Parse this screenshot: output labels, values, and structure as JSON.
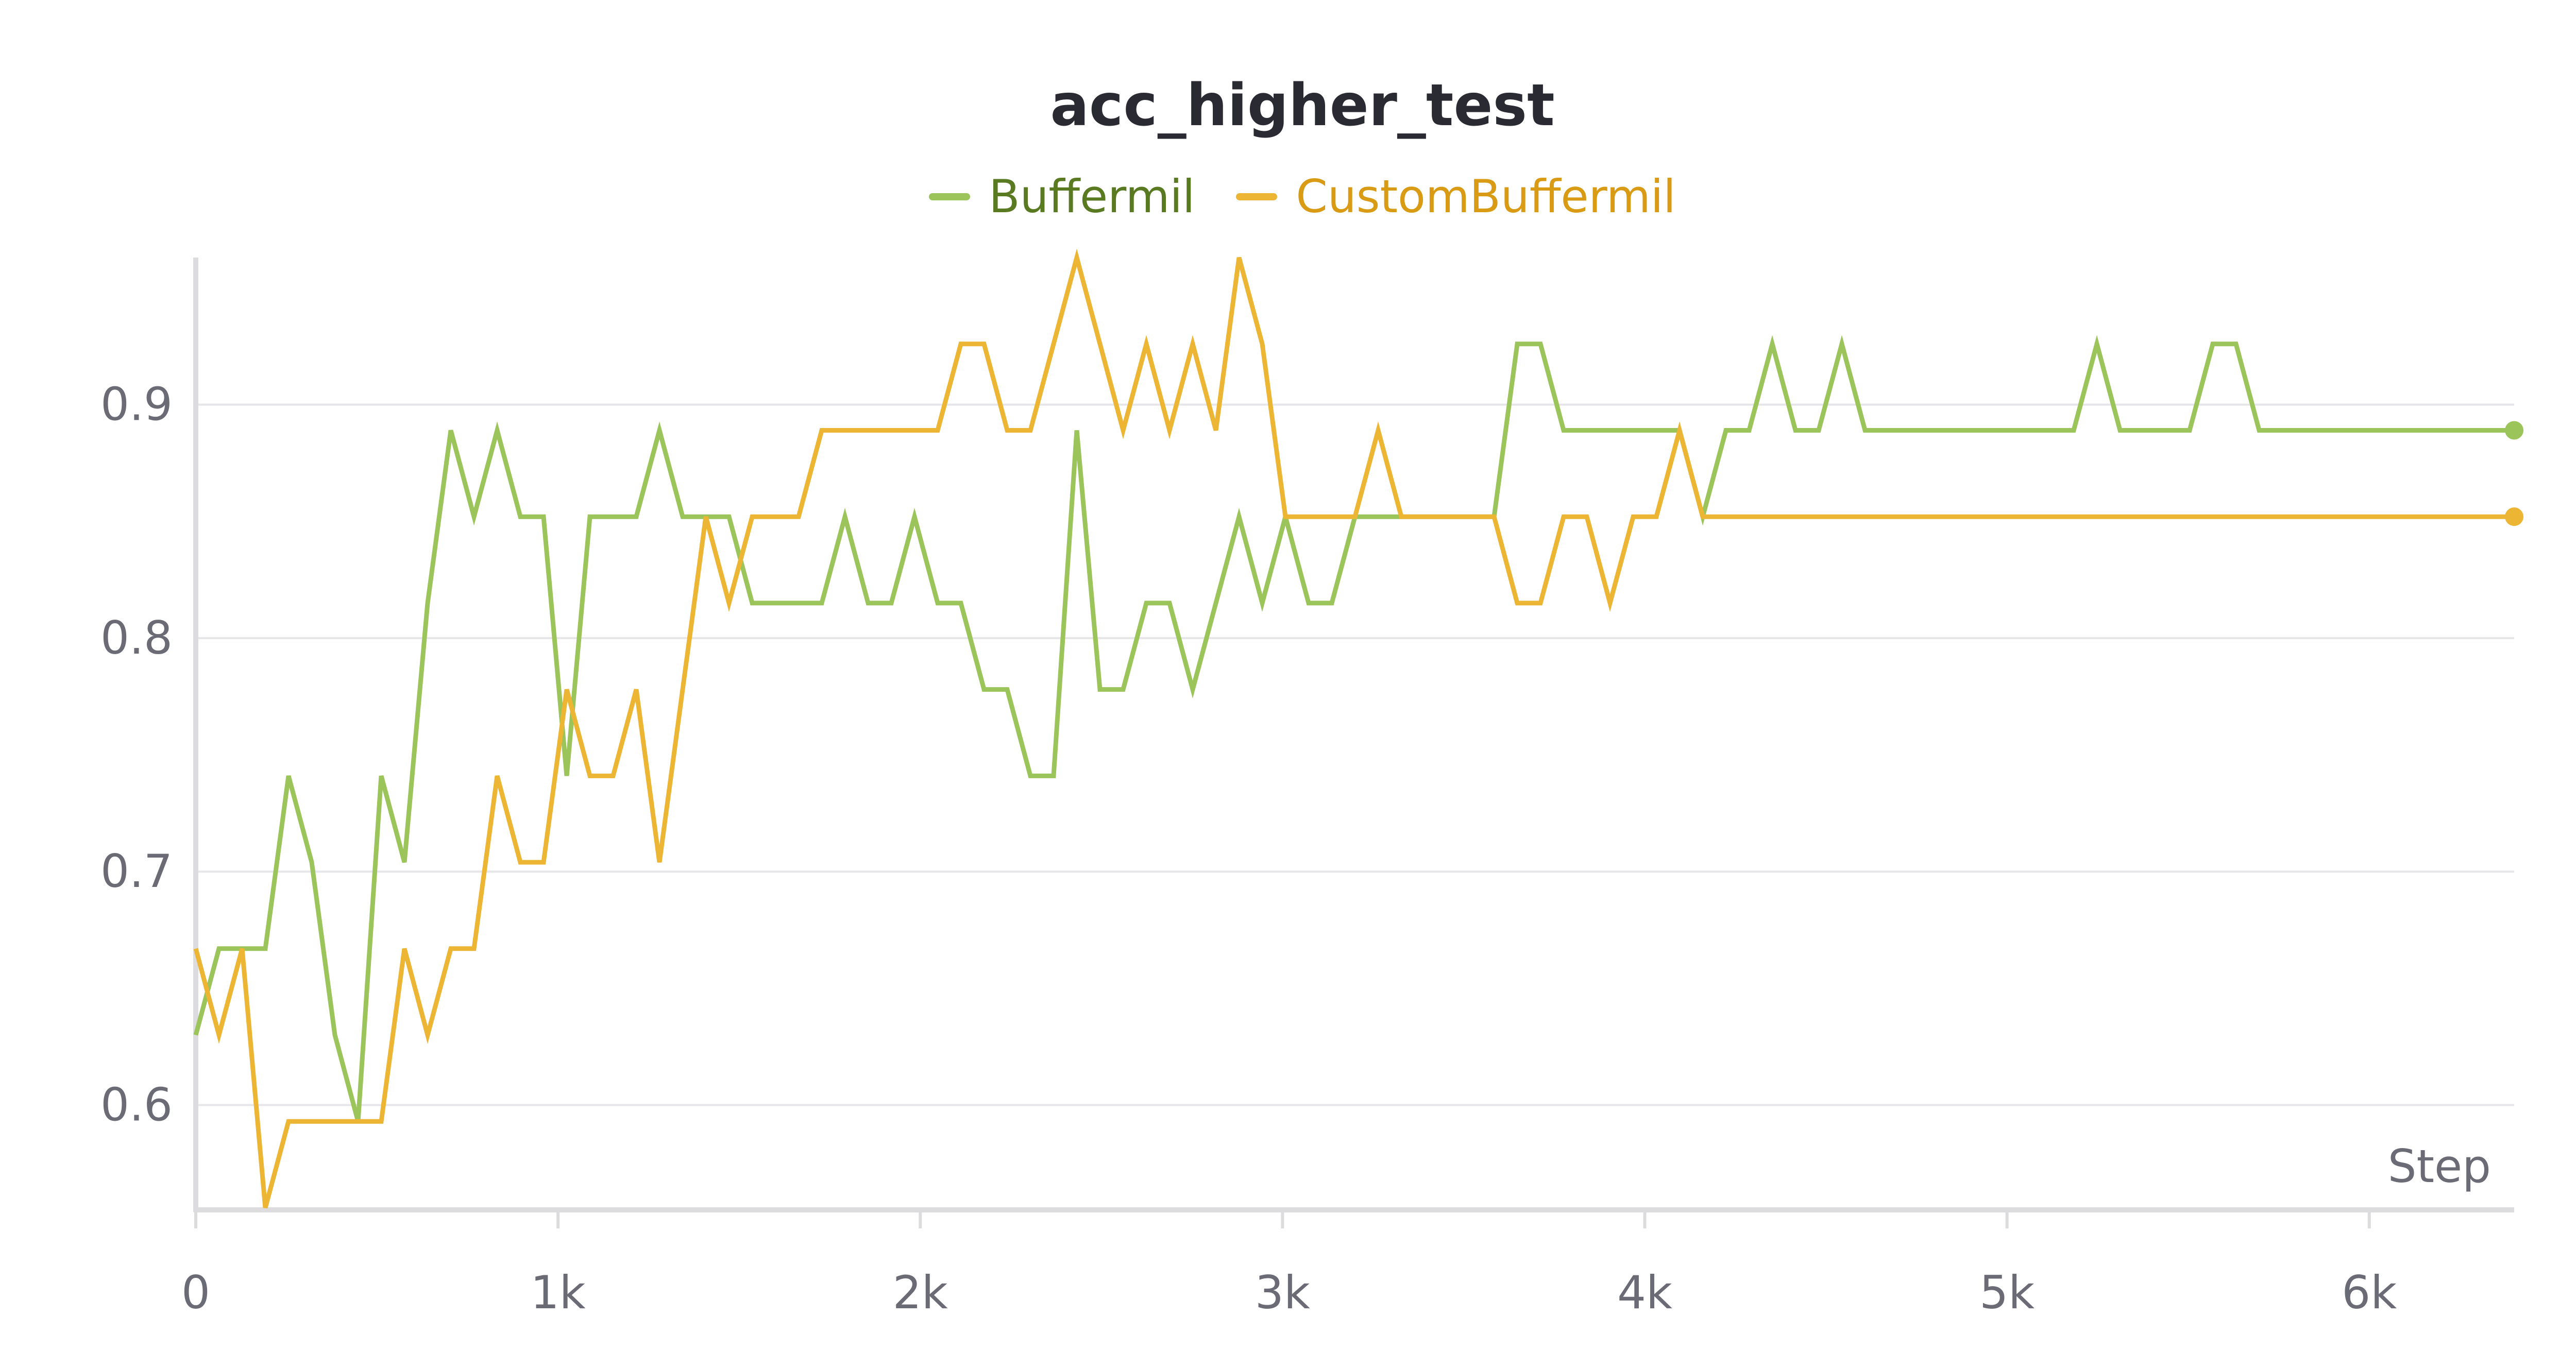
{
  "chart_data": {
    "type": "line",
    "title": "acc_higher_test",
    "xlabel": "Step",
    "ylabel": "",
    "xlim": [
      0,
      6400
    ],
    "ylim": [
      0.556,
      0.963
    ],
    "x_ticks": [
      0,
      1000,
      2000,
      3000,
      4000,
      5000,
      6000
    ],
    "x_tick_labels": [
      "0",
      "1k",
      "2k",
      "3k",
      "4k",
      "5k",
      "6k"
    ],
    "y_ticks": [
      0.6,
      0.7,
      0.8,
      0.9
    ],
    "y_tick_labels": [
      "0.6",
      "0.7",
      "0.8",
      "0.9"
    ],
    "grid": true,
    "legend": "top-center",
    "series": [
      {
        "name": "Buffermil",
        "color": "#9bc45a",
        "legend_text_color": "#5a7a22",
        "points": [
          [
            0,
            0.63
          ],
          [
            64,
            0.667
          ],
          [
            128,
            0.667
          ],
          [
            192,
            0.667
          ],
          [
            256,
            0.741
          ],
          [
            320,
            0.704
          ],
          [
            384,
            0.63
          ],
          [
            448,
            0.593
          ],
          [
            512,
            0.741
          ],
          [
            576,
            0.704
          ],
          [
            640,
            0.815
          ],
          [
            704,
            0.889
          ],
          [
            768,
            0.852
          ],
          [
            832,
            0.889
          ],
          [
            896,
            0.852
          ],
          [
            960,
            0.852
          ],
          [
            1024,
            0.741
          ],
          [
            1088,
            0.852
          ],
          [
            1152,
            0.852
          ],
          [
            1216,
            0.852
          ],
          [
            1280,
            0.889
          ],
          [
            1344,
            0.852
          ],
          [
            1408,
            0.852
          ],
          [
            1472,
            0.852
          ],
          [
            1536,
            0.815
          ],
          [
            1600,
            0.815
          ],
          [
            1664,
            0.815
          ],
          [
            1728,
            0.815
          ],
          [
            1792,
            0.852
          ],
          [
            1856,
            0.815
          ],
          [
            1920,
            0.815
          ],
          [
            1984,
            0.852
          ],
          [
            2048,
            0.815
          ],
          [
            2112,
            0.815
          ],
          [
            2176,
            0.778
          ],
          [
            2240,
            0.778
          ],
          [
            2304,
            0.741
          ],
          [
            2368,
            0.741
          ],
          [
            2432,
            0.889
          ],
          [
            2496,
            0.778
          ],
          [
            2560,
            0.778
          ],
          [
            2624,
            0.815
          ],
          [
            2688,
            0.815
          ],
          [
            2752,
            0.778
          ],
          [
            2816,
            0.815
          ],
          [
            2880,
            0.852
          ],
          [
            2944,
            0.815
          ],
          [
            3008,
            0.852
          ],
          [
            3072,
            0.815
          ],
          [
            3136,
            0.815
          ],
          [
            3200,
            0.852
          ],
          [
            3264,
            0.852
          ],
          [
            3328,
            0.852
          ],
          [
            3392,
            0.852
          ],
          [
            3456,
            0.852
          ],
          [
            3520,
            0.852
          ],
          [
            3584,
            0.852
          ],
          [
            3648,
            0.926
          ],
          [
            3712,
            0.926
          ],
          [
            3776,
            0.889
          ],
          [
            3840,
            0.889
          ],
          [
            3904,
            0.889
          ],
          [
            3968,
            0.889
          ],
          [
            4032,
            0.889
          ],
          [
            4096,
            0.889
          ],
          [
            4160,
            0.852
          ],
          [
            4224,
            0.889
          ],
          [
            4288,
            0.889
          ],
          [
            4352,
            0.926
          ],
          [
            4416,
            0.889
          ],
          [
            4480,
            0.889
          ],
          [
            4544,
            0.926
          ],
          [
            4608,
            0.889
          ],
          [
            4672,
            0.889
          ],
          [
            4736,
            0.889
          ],
          [
            4800,
            0.889
          ],
          [
            4864,
            0.889
          ],
          [
            4928,
            0.889
          ],
          [
            4992,
            0.889
          ],
          [
            5056,
            0.889
          ],
          [
            5120,
            0.889
          ],
          [
            5184,
            0.889
          ],
          [
            5248,
            0.926
          ],
          [
            5312,
            0.889
          ],
          [
            5376,
            0.889
          ],
          [
            5440,
            0.889
          ],
          [
            5504,
            0.889
          ],
          [
            5568,
            0.926
          ],
          [
            5632,
            0.926
          ],
          [
            5696,
            0.889
          ],
          [
            5760,
            0.889
          ],
          [
            6400,
            0.889
          ]
        ]
      },
      {
        "name": "CustomBuffermil",
        "color": "#ecb634",
        "legend_text_color": "#d99a14",
        "points": [
          [
            0,
            0.667
          ],
          [
            64,
            0.63
          ],
          [
            128,
            0.667
          ],
          [
            192,
            0.556
          ],
          [
            256,
            0.593
          ],
          [
            320,
            0.593
          ],
          [
            384,
            0.593
          ],
          [
            448,
            0.593
          ],
          [
            512,
            0.593
          ],
          [
            576,
            0.667
          ],
          [
            640,
            0.63
          ],
          [
            704,
            0.667
          ],
          [
            768,
            0.667
          ],
          [
            832,
            0.741
          ],
          [
            896,
            0.704
          ],
          [
            960,
            0.704
          ],
          [
            1024,
            0.778
          ],
          [
            1088,
            0.741
          ],
          [
            1152,
            0.741
          ],
          [
            1216,
            0.778
          ],
          [
            1280,
            0.704
          ],
          [
            1344,
            0.778
          ],
          [
            1408,
            0.852
          ],
          [
            1472,
            0.815
          ],
          [
            1536,
            0.852
          ],
          [
            1600,
            0.852
          ],
          [
            1664,
            0.852
          ],
          [
            1728,
            0.889
          ],
          [
            1792,
            0.889
          ],
          [
            1856,
            0.889
          ],
          [
            1920,
            0.889
          ],
          [
            1984,
            0.889
          ],
          [
            2048,
            0.889
          ],
          [
            2112,
            0.926
          ],
          [
            2176,
            0.926
          ],
          [
            2240,
            0.889
          ],
          [
            2304,
            0.889
          ],
          [
            2368,
            0.926
          ],
          [
            2432,
            0.963
          ],
          [
            2496,
            0.926
          ],
          [
            2560,
            0.889
          ],
          [
            2624,
            0.926
          ],
          [
            2688,
            0.889
          ],
          [
            2752,
            0.926
          ],
          [
            2816,
            0.889
          ],
          [
            2880,
            0.963
          ],
          [
            2944,
            0.926
          ],
          [
            3008,
            0.852
          ],
          [
            3072,
            0.852
          ],
          [
            3136,
            0.852
          ],
          [
            3200,
            0.852
          ],
          [
            3264,
            0.889
          ],
          [
            3328,
            0.852
          ],
          [
            3392,
            0.852
          ],
          [
            3456,
            0.852
          ],
          [
            3520,
            0.852
          ],
          [
            3584,
            0.852
          ],
          [
            3648,
            0.815
          ],
          [
            3712,
            0.815
          ],
          [
            3776,
            0.852
          ],
          [
            3840,
            0.852
          ],
          [
            3904,
            0.815
          ],
          [
            3968,
            0.852
          ],
          [
            4032,
            0.852
          ],
          [
            4096,
            0.889
          ],
          [
            4160,
            0.852
          ],
          [
            4224,
            0.852
          ],
          [
            6400,
            0.852
          ]
        ]
      }
    ]
  }
}
